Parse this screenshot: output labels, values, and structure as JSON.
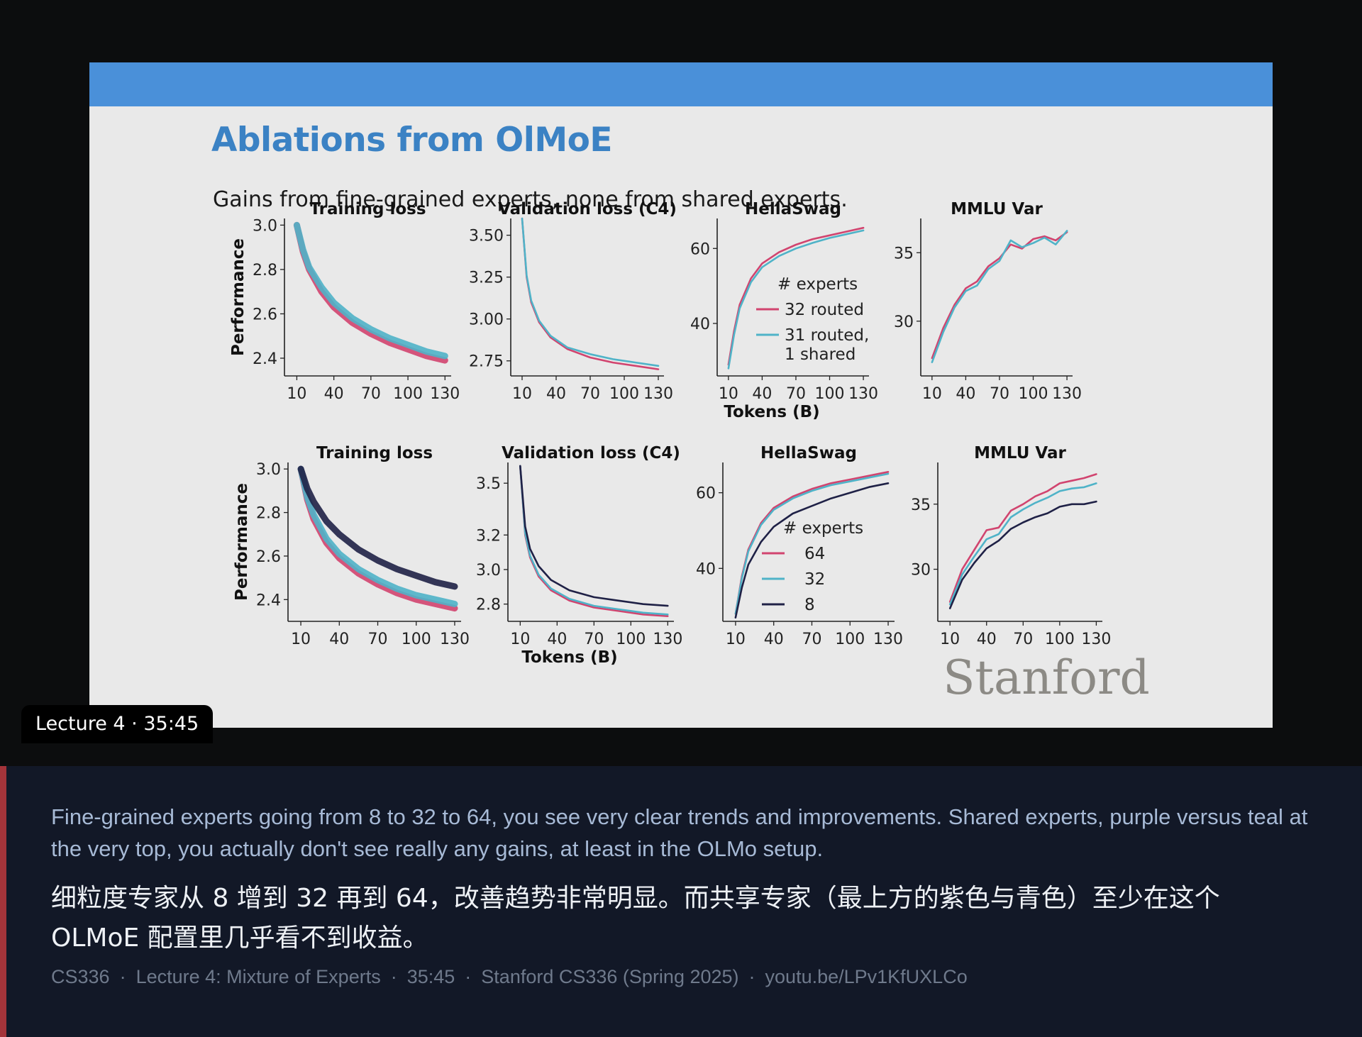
{
  "slide": {
    "title": "Ablations from OlMoE",
    "subtitle": "Gains from fine-grained experts, none from shared experts.",
    "watermark": "Stanford"
  },
  "timestamp_badge": "Lecture 4 · 35:45",
  "caption": {
    "english": "Fine-grained experts going from 8 to 32 to 64, you see very clear trends and improvements. Shared experts, purple versus teal at the very top, you actually don't see really any gains, at least in the OLMo setup.",
    "chinese": "细粒度专家从 8 增到 32 再到 64，改善趋势非常明显。而共享专家（最上方的紫色与青色）至少在这个 OLMoE 配置里几乎看不到收益。"
  },
  "meta": [
    "CS336",
    "Lecture 4: Mixture of Experts",
    "35:45",
    "Stanford CS336 (Spring 2025)",
    "youtu.be/LPv1KfUXLCo"
  ],
  "colors": {
    "pink": "#d1446f",
    "teal": "#4fb3c8",
    "navy": "#1f2146",
    "slide_bar": "#4a90d9"
  },
  "chart_data": [
    {
      "type": "line",
      "title": "Training loss",
      "ylabel": "Performance",
      "xlabel": "",
      "x_ticks": [
        10,
        40,
        70,
        100,
        130
      ],
      "y_ticks": [
        2.4,
        2.6,
        2.8,
        3.0
      ],
      "xlim": [
        0,
        135
      ],
      "ylim": [
        2.32,
        3.03
      ],
      "series": [
        {
          "name": "32 routed",
          "color": "#d1446f",
          "x": [
            10,
            15,
            20,
            30,
            40,
            55,
            70,
            85,
            100,
            115,
            130
          ],
          "y": [
            3.0,
            2.88,
            2.8,
            2.7,
            2.63,
            2.56,
            2.51,
            2.47,
            2.44,
            2.41,
            2.39
          ]
        },
        {
          "name": "31 routed, 1 shared",
          "color": "#4fb3c8",
          "x": [
            10,
            15,
            20,
            30,
            40,
            55,
            70,
            85,
            100,
            115,
            130
          ],
          "y": [
            3.0,
            2.89,
            2.81,
            2.72,
            2.65,
            2.58,
            2.53,
            2.49,
            2.46,
            2.43,
            2.41
          ]
        }
      ]
    },
    {
      "type": "line",
      "title": "Validation loss (C4)",
      "xlabel": "",
      "x_ticks": [
        10,
        40,
        70,
        100,
        130
      ],
      "y_ticks": [
        2.75,
        3.0,
        3.25,
        3.5
      ],
      "xlim": [
        0,
        135
      ],
      "ylim": [
        2.66,
        3.6
      ],
      "series": [
        {
          "name": "32 routed",
          "color": "#d1446f",
          "x": [
            10,
            14,
            18,
            25,
            35,
            50,
            70,
            90,
            110,
            130
          ],
          "y": [
            3.6,
            3.25,
            3.1,
            2.98,
            2.89,
            2.82,
            2.77,
            2.74,
            2.72,
            2.7
          ]
        },
        {
          "name": "31 routed, 1 shared",
          "color": "#4fb3c8",
          "x": [
            10,
            14,
            18,
            25,
            35,
            50,
            70,
            90,
            110,
            130
          ],
          "y": [
            3.6,
            3.26,
            3.11,
            2.99,
            2.9,
            2.83,
            2.79,
            2.76,
            2.74,
            2.72
          ]
        }
      ]
    },
    {
      "type": "line",
      "title": "HellaSwag",
      "xlabel": "Tokens (B)",
      "x_ticks": [
        10,
        40,
        70,
        100,
        130
      ],
      "y_ticks": [
        40,
        60
      ],
      "xlim": [
        0,
        135
      ],
      "ylim": [
        26,
        68
      ],
      "legend_title": "# experts",
      "series": [
        {
          "name": "32 routed",
          "color": "#d1446f",
          "x": [
            10,
            15,
            20,
            30,
            40,
            55,
            70,
            85,
            100,
            115,
            130
          ],
          "y": [
            29,
            38,
            45,
            52,
            56,
            59,
            61,
            62.5,
            63.5,
            64.5,
            65.5
          ]
        },
        {
          "name": "31 routed, 1 shared",
          "color": "#4fb3c8",
          "x": [
            10,
            15,
            20,
            30,
            40,
            55,
            70,
            85,
            100,
            115,
            130
          ],
          "y": [
            28,
            37,
            44,
            51,
            55,
            58,
            60,
            61.5,
            62.8,
            63.8,
            64.8
          ]
        }
      ]
    },
    {
      "type": "line",
      "title": "MMLU Var",
      "xlabel": "",
      "x_ticks": [
        10,
        40,
        70,
        100,
        130
      ],
      "y_ticks": [
        30,
        35
      ],
      "xlim": [
        0,
        135
      ],
      "ylim": [
        26,
        37.5
      ],
      "series": [
        {
          "name": "32 routed",
          "color": "#d1446f",
          "x": [
            10,
            20,
            30,
            40,
            50,
            60,
            70,
            80,
            90,
            100,
            110,
            120,
            130
          ],
          "y": [
            27.3,
            29.5,
            31.2,
            32.4,
            32.9,
            34,
            34.6,
            35.6,
            35.3,
            36,
            36.2,
            35.9,
            36.5
          ]
        },
        {
          "name": "31 routed, 1 shared",
          "color": "#4fb3c8",
          "x": [
            10,
            20,
            30,
            40,
            50,
            60,
            70,
            80,
            90,
            100,
            110,
            120,
            130
          ],
          "y": [
            27,
            29.2,
            31,
            32.2,
            32.6,
            33.8,
            34.4,
            35.9,
            35.4,
            35.7,
            36.1,
            35.6,
            36.6
          ]
        }
      ]
    },
    {
      "type": "line",
      "title": "Training loss",
      "ylabel": "Performance",
      "xlabel": "",
      "x_ticks": [
        10,
        40,
        70,
        100,
        130
      ],
      "y_ticks": [
        2.4,
        2.6,
        2.8,
        3.0
      ],
      "xlim": [
        0,
        135
      ],
      "ylim": [
        2.3,
        3.03
      ],
      "series": [
        {
          "name": "64",
          "color": "#d1446f",
          "x": [
            10,
            15,
            20,
            30,
            40,
            55,
            70,
            85,
            100,
            115,
            130
          ],
          "y": [
            3.0,
            2.86,
            2.77,
            2.66,
            2.59,
            2.52,
            2.47,
            2.43,
            2.4,
            2.38,
            2.36
          ]
        },
        {
          "name": "32",
          "color": "#4fb3c8",
          "x": [
            10,
            15,
            20,
            30,
            40,
            55,
            70,
            85,
            100,
            115,
            130
          ],
          "y": [
            3.0,
            2.87,
            2.79,
            2.68,
            2.61,
            2.54,
            2.49,
            2.45,
            2.42,
            2.4,
            2.38
          ]
        },
        {
          "name": "8",
          "color": "#1f2146",
          "x": [
            10,
            15,
            20,
            30,
            40,
            55,
            70,
            85,
            100,
            115,
            130
          ],
          "y": [
            3.0,
            2.91,
            2.85,
            2.76,
            2.7,
            2.63,
            2.58,
            2.54,
            2.51,
            2.48,
            2.46
          ]
        }
      ]
    },
    {
      "type": "line",
      "title": "Validation loss (C4)",
      "xlabel": "Tokens (B)",
      "x_ticks": [
        10,
        40,
        70,
        100,
        130
      ],
      "y_ticks": [
        2.8,
        3.0,
        3.2,
        3.5
      ],
      "xlim": [
        0,
        135
      ],
      "ylim": [
        2.7,
        3.62
      ],
      "series": [
        {
          "name": "64",
          "color": "#d1446f",
          "x": [
            10,
            14,
            18,
            25,
            35,
            50,
            70,
            90,
            110,
            130
          ],
          "y": [
            3.6,
            3.2,
            3.07,
            2.96,
            2.88,
            2.82,
            2.78,
            2.76,
            2.74,
            2.73
          ]
        },
        {
          "name": "32",
          "color": "#4fb3c8",
          "x": [
            10,
            14,
            18,
            25,
            35,
            50,
            70,
            90,
            110,
            130
          ],
          "y": [
            3.6,
            3.21,
            3.08,
            2.97,
            2.89,
            2.83,
            2.79,
            2.77,
            2.75,
            2.74
          ]
        },
        {
          "name": "8",
          "color": "#1f2146",
          "x": [
            10,
            14,
            18,
            25,
            35,
            50,
            70,
            90,
            110,
            130
          ],
          "y": [
            3.6,
            3.25,
            3.12,
            3.02,
            2.94,
            2.88,
            2.84,
            2.82,
            2.8,
            2.79
          ]
        }
      ]
    },
    {
      "type": "line",
      "title": "HellaSwag",
      "xlabel": "",
      "x_ticks": [
        10,
        40,
        70,
        100,
        130
      ],
      "y_ticks": [
        40,
        60
      ],
      "xlim": [
        0,
        135
      ],
      "ylim": [
        26,
        68
      ],
      "legend_title": "# experts",
      "series": [
        {
          "name": "64",
          "color": "#d1446f",
          "x": [
            10,
            15,
            20,
            30,
            40,
            55,
            70,
            85,
            100,
            115,
            130
          ],
          "y": [
            28,
            38,
            45,
            52,
            56,
            59,
            61,
            62.5,
            63.5,
            64.5,
            65.5
          ]
        },
        {
          "name": "32",
          "color": "#4fb3c8",
          "x": [
            10,
            15,
            20,
            30,
            40,
            55,
            70,
            85,
            100,
            115,
            130
          ],
          "y": [
            28,
            37.5,
            44.5,
            51.5,
            55.5,
            58.5,
            60.5,
            62,
            63,
            64,
            65
          ]
        },
        {
          "name": "8",
          "color": "#1f2146",
          "x": [
            10,
            15,
            20,
            30,
            40,
            55,
            70,
            85,
            100,
            115,
            130
          ],
          "y": [
            27,
            35,
            41,
            47,
            51,
            54.5,
            56.5,
            58.5,
            60,
            61.5,
            62.5
          ]
        }
      ]
    },
    {
      "type": "line",
      "title": "MMLU Var",
      "xlabel": "",
      "x_ticks": [
        10,
        40,
        70,
        100,
        130
      ],
      "y_ticks": [
        30,
        35
      ],
      "xlim": [
        0,
        135
      ],
      "ylim": [
        26,
        38.2
      ],
      "series": [
        {
          "name": "64",
          "color": "#d1446f",
          "x": [
            10,
            20,
            30,
            40,
            50,
            60,
            70,
            80,
            90,
            100,
            110,
            120,
            130
          ],
          "y": [
            27.5,
            30,
            31.5,
            33,
            33.2,
            34.5,
            35,
            35.6,
            36,
            36.6,
            36.8,
            37,
            37.3
          ]
        },
        {
          "name": "32",
          "color": "#4fb3c8",
          "x": [
            10,
            20,
            30,
            40,
            50,
            60,
            70,
            80,
            90,
            100,
            110,
            120,
            130
          ],
          "y": [
            27.3,
            29.6,
            31,
            32.3,
            32.7,
            34,
            34.6,
            35.1,
            35.5,
            36,
            36.2,
            36.3,
            36.6
          ]
        },
        {
          "name": "8",
          "color": "#1f2146",
          "x": [
            10,
            20,
            30,
            40,
            50,
            60,
            70,
            80,
            90,
            100,
            110,
            120,
            130
          ],
          "y": [
            27,
            29.2,
            30.5,
            31.6,
            32.2,
            33.1,
            33.6,
            34,
            34.3,
            34.8,
            35,
            35,
            35.2
          ]
        }
      ]
    }
  ]
}
